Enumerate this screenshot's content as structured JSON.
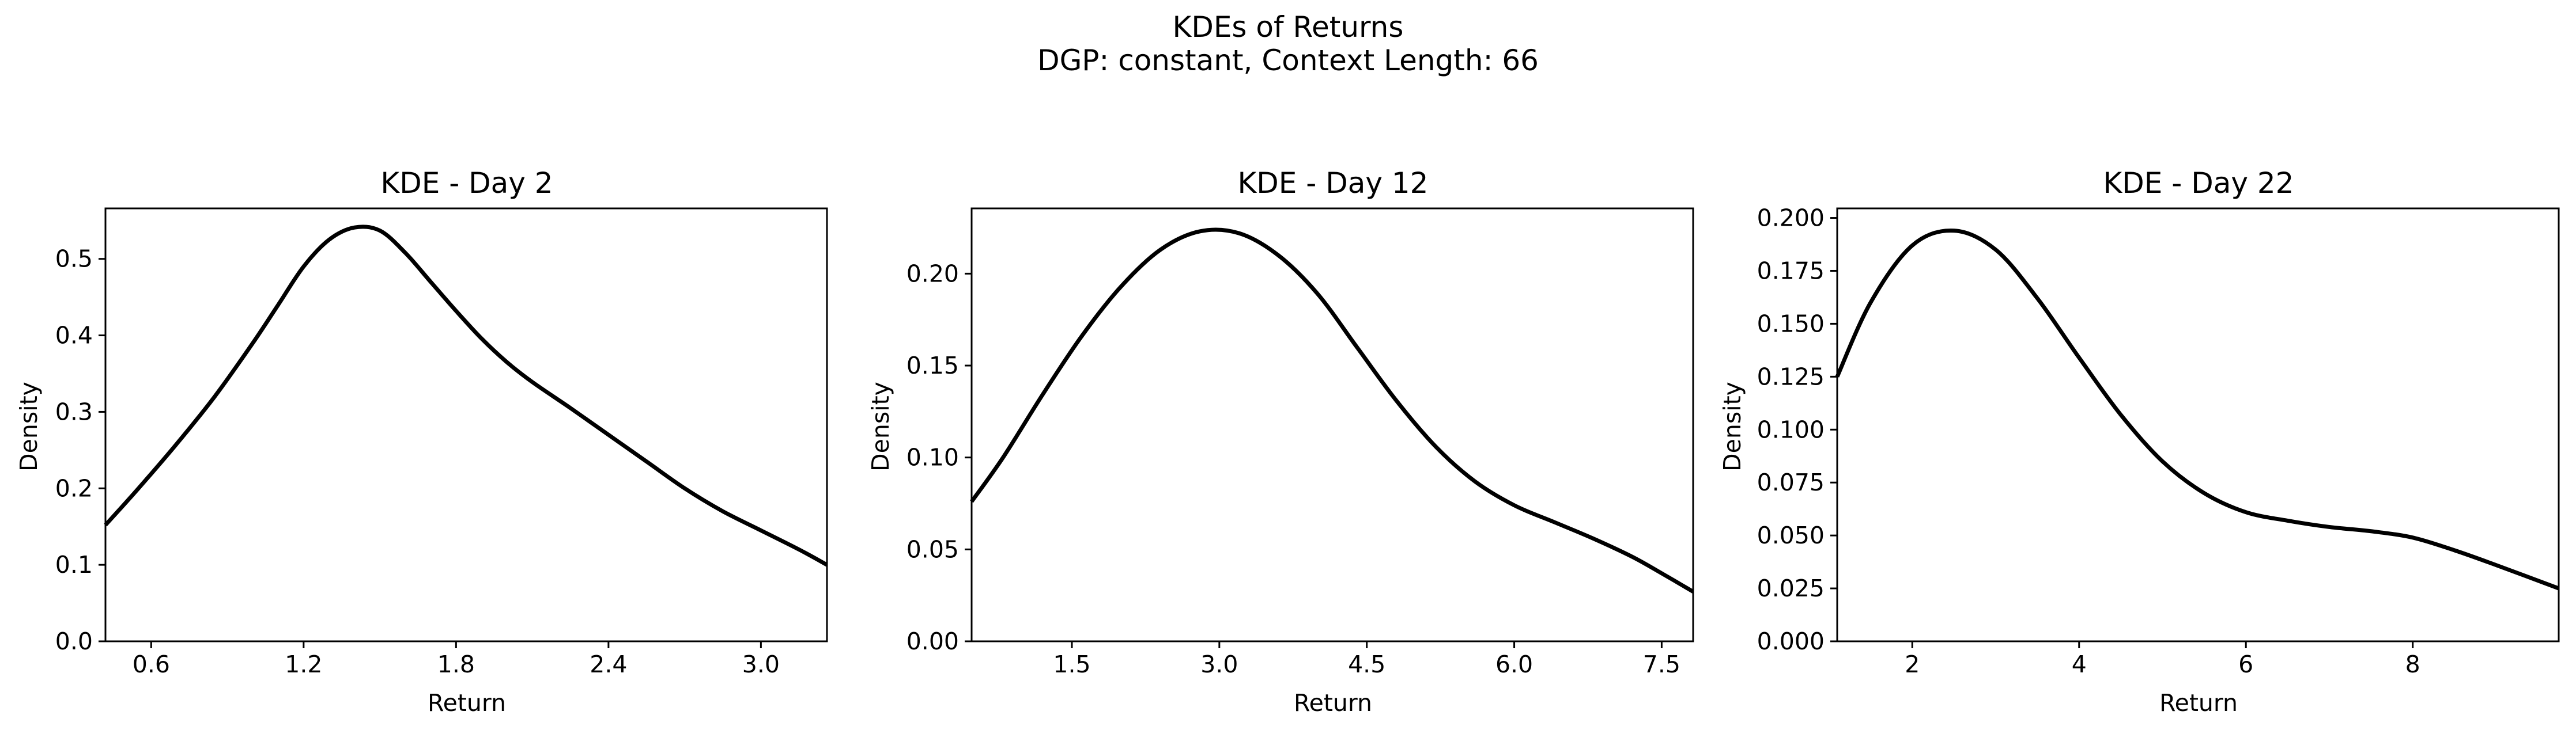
{
  "figure": {
    "title_line1": "KDEs of Returns",
    "title_line2": "DGP: constant, Context Length: 66"
  },
  "style": {
    "line_color": "#000000",
    "background": "#ffffff"
  },
  "chart_data": [
    {
      "type": "line",
      "title": "KDE - Day 2",
      "xlabel": "Return",
      "ylabel": "Density",
      "xlim": [
        0.42,
        3.26
      ],
      "ylim": [
        0.0,
        0.566
      ],
      "xticks": [
        0.6,
        1.2,
        1.8,
        2.4,
        3.0
      ],
      "xtick_labels": [
        "0.6",
        "1.2",
        "1.8",
        "2.4",
        "3.0"
      ],
      "yticks": [
        0.0,
        0.1,
        0.2,
        0.3,
        0.4,
        0.5
      ],
      "ytick_labels": [
        "0.0",
        "0.1",
        "0.2",
        "0.3",
        "0.4",
        "0.5"
      ],
      "grid": false,
      "x": [
        0.42,
        0.55,
        0.7,
        0.85,
        1.0,
        1.1,
        1.2,
        1.3,
        1.4,
        1.5,
        1.6,
        1.7,
        1.8,
        1.9,
        2.0,
        2.1,
        2.25,
        2.4,
        2.55,
        2.7,
        2.85,
        3.0,
        3.15,
        3.26
      ],
      "y": [
        0.152,
        0.2,
        0.258,
        0.32,
        0.39,
        0.44,
        0.49,
        0.525,
        0.541,
        0.537,
        0.508,
        0.47,
        0.432,
        0.396,
        0.365,
        0.339,
        0.305,
        0.27,
        0.235,
        0.2,
        0.17,
        0.145,
        0.12,
        0.1
      ]
    },
    {
      "type": "line",
      "title": "KDE - Day 12",
      "xlabel": "Return",
      "ylabel": "Density",
      "xlim": [
        0.48,
        7.82
      ],
      "ylim": [
        0.0,
        0.2355
      ],
      "xticks": [
        1.5,
        3.0,
        4.5,
        6.0,
        7.5
      ],
      "xtick_labels": [
        "1.5",
        "3.0",
        "4.5",
        "6.0",
        "7.5"
      ],
      "yticks": [
        0.0,
        0.05,
        0.1,
        0.15,
        0.2
      ],
      "ytick_labels": [
        "0.00",
        "0.05",
        "0.10",
        "0.15",
        "0.20"
      ],
      "grid": false,
      "x": [
        0.48,
        0.8,
        1.2,
        1.6,
        2.0,
        2.4,
        2.8,
        3.2,
        3.6,
        4.0,
        4.4,
        4.8,
        5.2,
        5.6,
        6.0,
        6.4,
        6.8,
        7.2,
        7.5,
        7.82
      ],
      "y": [
        0.076,
        0.1,
        0.134,
        0.166,
        0.193,
        0.213,
        0.223,
        0.222,
        0.21,
        0.189,
        0.16,
        0.131,
        0.106,
        0.087,
        0.074,
        0.065,
        0.056,
        0.046,
        0.037,
        0.027
      ]
    },
    {
      "type": "line",
      "title": "KDE - Day 22",
      "xlabel": "Return",
      "ylabel": "Density",
      "xlim": [
        1.1,
        9.75
      ],
      "ylim": [
        0.0,
        0.2045
      ],
      "xticks": [
        2,
        4,
        6,
        8
      ],
      "xtick_labels": [
        "2",
        "4",
        "6",
        "8"
      ],
      "yticks": [
        0.0,
        0.025,
        0.05,
        0.075,
        0.1,
        0.125,
        0.15,
        0.175,
        0.2
      ],
      "ytick_labels": [
        "0.000",
        "0.025",
        "0.050",
        "0.075",
        "0.100",
        "0.125",
        "0.150",
        "0.175",
        "0.200"
      ],
      "grid": false,
      "x": [
        1.1,
        1.5,
        2.0,
        2.5,
        3.0,
        3.5,
        4.0,
        4.5,
        5.0,
        5.5,
        6.0,
        6.5,
        7.0,
        7.5,
        8.0,
        8.5,
        9.0,
        9.75
      ],
      "y": [
        0.125,
        0.16,
        0.187,
        0.194,
        0.185,
        0.162,
        0.134,
        0.107,
        0.085,
        0.07,
        0.061,
        0.057,
        0.054,
        0.052,
        0.049,
        0.043,
        0.036,
        0.025
      ]
    }
  ]
}
